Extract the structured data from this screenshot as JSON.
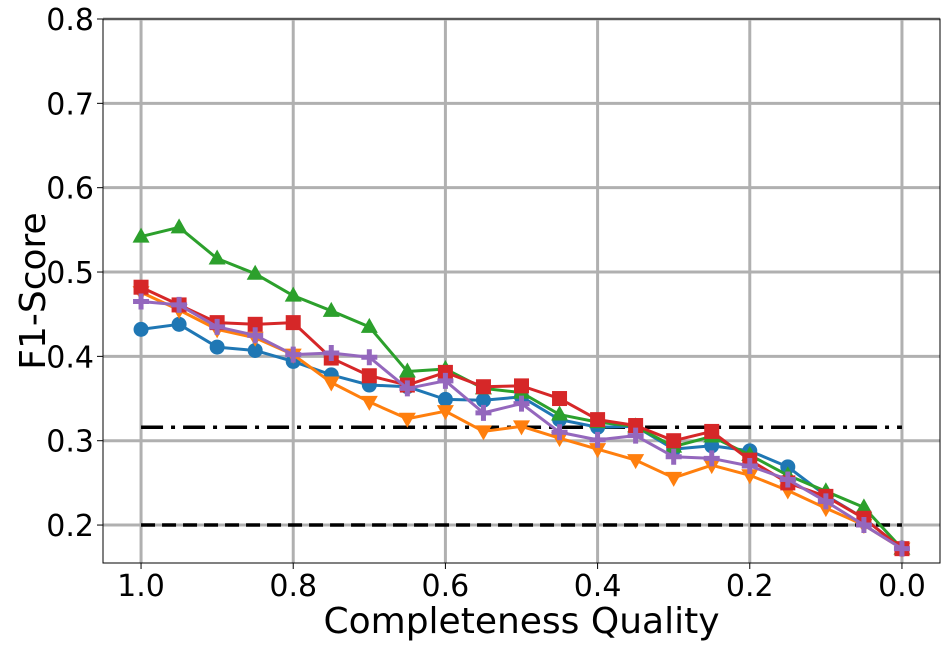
{
  "chart_data": {
    "type": "line",
    "xlabel": "Completeness Quality",
    "ylabel": "F1-Score",
    "xlim": [
      1.05,
      -0.05
    ],
    "ylim": [
      0.155,
      0.8
    ],
    "x_inverted": true,
    "grid": true,
    "x_ticks": [
      1.0,
      0.8,
      0.6,
      0.4,
      0.2,
      0.0
    ],
    "x_tick_labels": [
      "1.0",
      "0.8",
      "0.6",
      "0.4",
      "0.2",
      "0.0"
    ],
    "y_ticks": [
      0.2,
      0.3,
      0.4,
      0.5,
      0.6,
      0.7,
      0.8
    ],
    "y_tick_labels": [
      "0.2",
      "0.3",
      "0.4",
      "0.5",
      "0.6",
      "0.7",
      "0.8"
    ],
    "x": [
      1.0,
      0.95,
      0.9,
      0.85,
      0.8,
      0.75,
      0.7,
      0.65,
      0.6,
      0.55,
      0.5,
      0.45,
      0.4,
      0.35,
      0.3,
      0.25,
      0.2,
      0.15,
      0.1,
      0.05,
      0.0
    ],
    "series": [
      {
        "color": "#1f77b4",
        "marker": "circle",
        "values": [
          0.432,
          0.438,
          0.411,
          0.407,
          0.394,
          0.378,
          0.366,
          0.364,
          0.349,
          0.348,
          0.352,
          0.325,
          0.316,
          0.317,
          0.29,
          0.294,
          0.288,
          0.269,
          0.235,
          0.208,
          0.172
        ]
      },
      {
        "color": "#ff7f0e",
        "marker": "triangle-down",
        "values": [
          0.476,
          0.455,
          0.432,
          0.422,
          0.402,
          0.369,
          0.346,
          0.326,
          0.335,
          0.311,
          0.317,
          0.303,
          0.29,
          0.277,
          0.256,
          0.271,
          0.259,
          0.241,
          0.22,
          0.2,
          0.172
        ]
      },
      {
        "color": "#2ca02c",
        "marker": "triangle-up",
        "values": [
          0.542,
          0.553,
          0.516,
          0.498,
          0.472,
          0.454,
          0.435,
          0.382,
          0.385,
          0.362,
          0.357,
          0.331,
          0.322,
          0.317,
          0.293,
          0.305,
          0.283,
          0.259,
          0.24,
          0.221,
          0.172
        ]
      },
      {
        "color": "#d62728",
        "marker": "square",
        "values": [
          0.482,
          0.461,
          0.44,
          0.438,
          0.44,
          0.398,
          0.377,
          0.366,
          0.381,
          0.364,
          0.365,
          0.35,
          0.325,
          0.318,
          0.3,
          0.311,
          0.277,
          0.25,
          0.234,
          0.208,
          0.172
        ]
      },
      {
        "color": "#9467bd",
        "marker": "plus",
        "values": [
          0.465,
          0.461,
          0.435,
          0.425,
          0.402,
          0.404,
          0.399,
          0.362,
          0.371,
          0.333,
          0.344,
          0.31,
          0.301,
          0.306,
          0.281,
          0.279,
          0.27,
          0.254,
          0.228,
          0.2,
          0.172
        ]
      }
    ],
    "reference_lines": [
      {
        "y": 0.316,
        "style": "dashdot",
        "color": "#000000",
        "x_range": [
          1.0,
          0.0
        ]
      },
      {
        "y": 0.2,
        "style": "dashed",
        "color": "#000000",
        "x_range": [
          1.0,
          0.0
        ]
      }
    ]
  }
}
